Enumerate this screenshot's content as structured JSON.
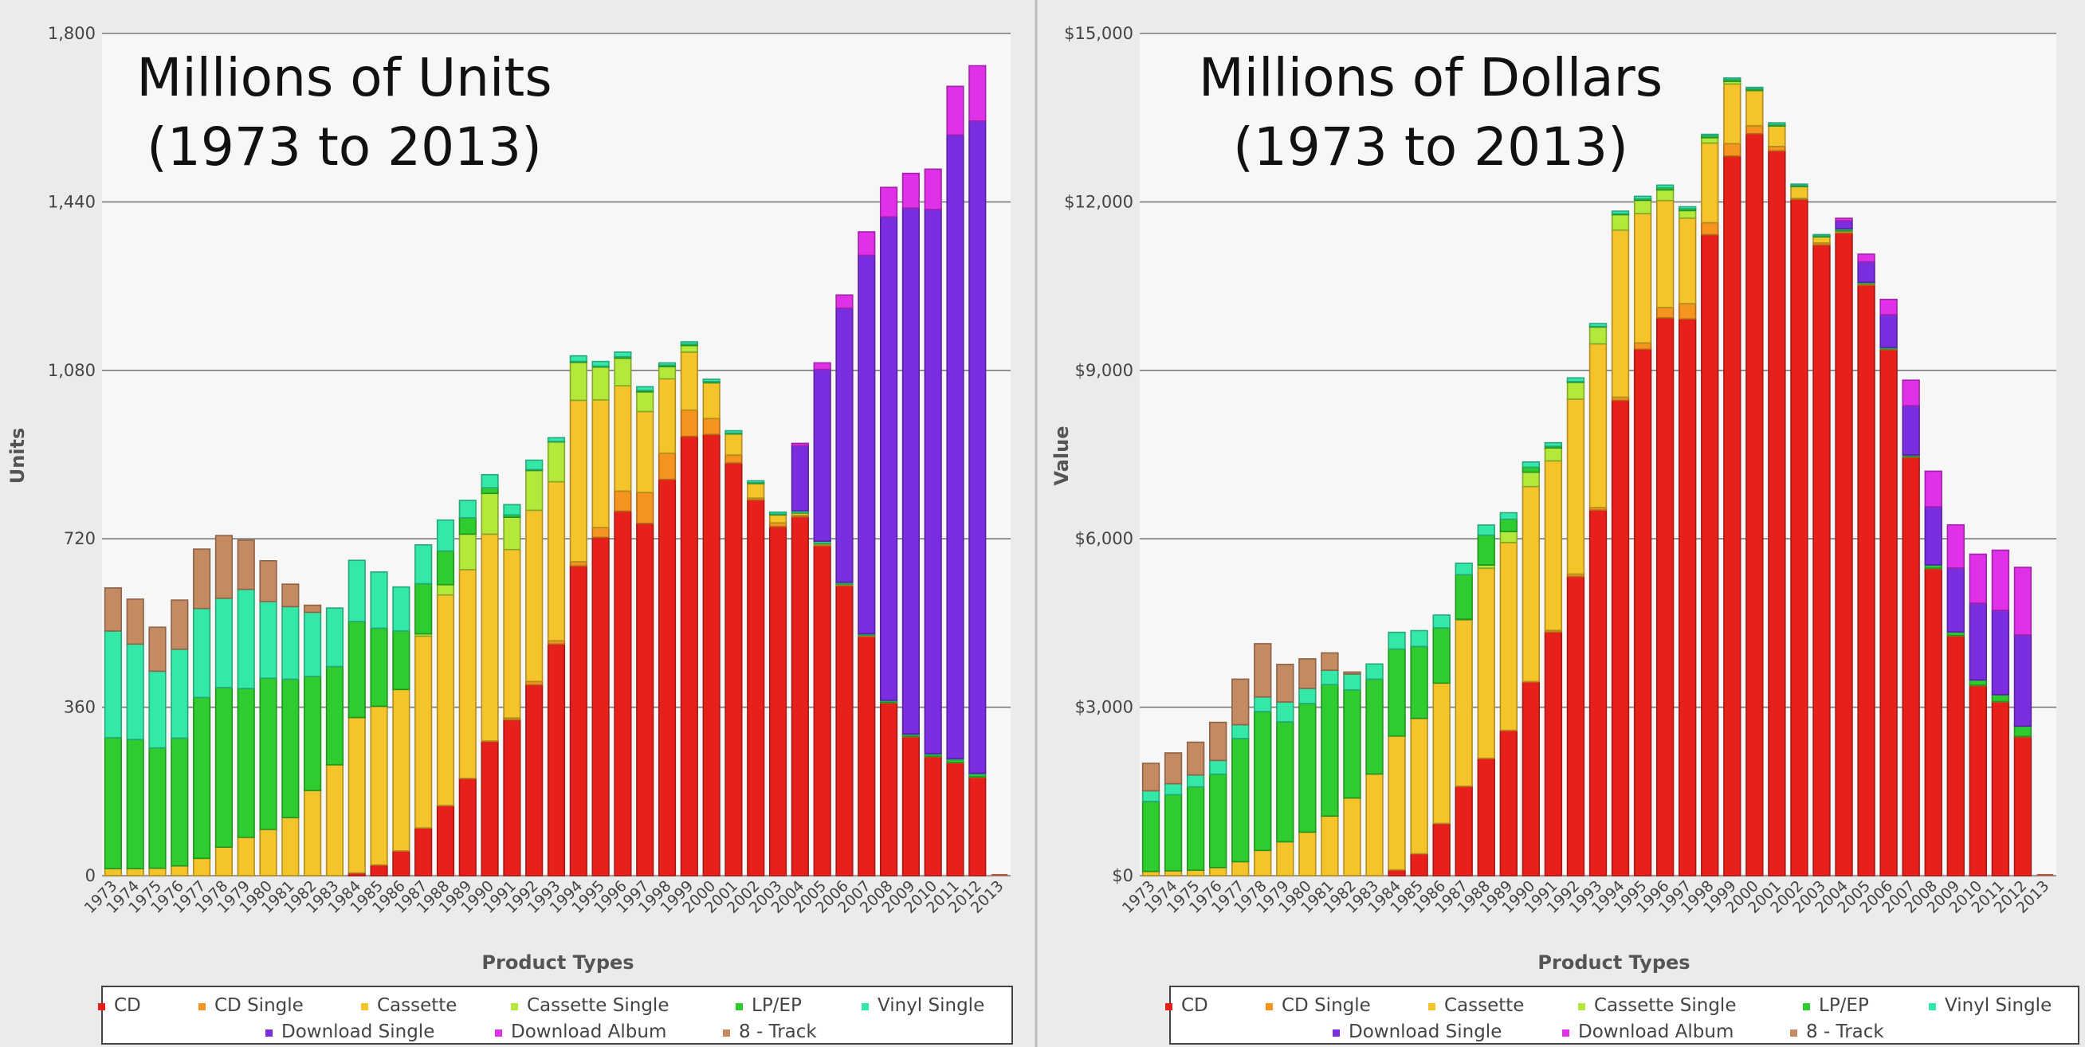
{
  "colors": {
    "CD": "#e8201c",
    "CD Single": "#f5941e",
    "Cassette": "#f4c42a",
    "Cassette Single": "#b4e83a",
    "LP/EP": "#2ecc2e",
    "Vinyl Single": "#34e8a8",
    "Download Single": "#7a2ee0",
    "Download Album": "#e030e8",
    "8 - Track": "#c48a62"
  },
  "chart_data": [
    {
      "type": "bar",
      "stacked": true,
      "title": "Millions of Units\n(1973 to 2013)",
      "xlabel": "Product Types",
      "ylabel": "Units",
      "ylim": [
        0,
        1800
      ],
      "yticks": [
        "0",
        "360",
        "720",
        "1,080",
        "1,440",
        "1,800"
      ],
      "yticks_values": [
        0,
        360,
        720,
        1080,
        1440,
        1800
      ],
      "grid": true,
      "legend": "bottom",
      "categories": [
        "1973",
        "1974",
        "1975",
        "1976",
        "1977",
        "1978",
        "1979",
        "1980",
        "1981",
        "1982",
        "1983",
        "1984",
        "1985",
        "1986",
        "1987",
        "1988",
        "1989",
        "1990",
        "1991",
        "1992",
        "1993",
        "1994",
        "1995",
        "1996",
        "1997",
        "1998",
        "1999",
        "2000",
        "2001",
        "2002",
        "2003",
        "2004",
        "2005",
        "2006",
        "2007",
        "2008",
        "2009",
        "2010",
        "2011",
        "2012",
        "2013"
      ],
      "series": [
        {
          "name": "CD",
          "values": [
            0,
            0,
            0,
            0,
            0,
            0,
            0,
            0,
            0,
            0,
            0,
            6,
            23,
            53,
            102,
            150,
            208,
            287,
            333,
            408,
            495,
            662,
            723,
            779,
            753,
            847,
            939,
            943,
            882,
            803,
            746,
            767,
            705,
            620,
            511,
            369,
            297,
            254,
            241,
            210,
            0
          ]
        },
        {
          "name": "CD Single",
          "values": [
            0,
            0,
            0,
            0,
            0,
            0,
            0,
            0,
            0,
            0,
            0,
            0,
            0,
            0,
            0,
            0,
            0,
            1,
            4,
            7,
            7,
            9,
            21,
            43,
            66,
            56,
            56,
            34,
            17,
            4,
            8,
            3,
            3,
            2,
            3,
            1,
            1,
            1,
            1,
            1,
            0
          ]
        },
        {
          "name": "Cassette",
          "values": [
            15,
            15,
            16,
            21,
            37,
            61,
            82,
            99,
            124,
            182,
            237,
            332,
            339,
            345,
            410,
            450,
            446,
            442,
            360,
            366,
            340,
            345,
            273,
            225,
            173,
            159,
            124,
            76,
            45,
            31,
            17,
            5,
            2,
            1,
            0,
            0,
            0,
            0,
            0,
            0,
            0
          ]
        },
        {
          "name": "Cassette Single",
          "values": [
            0,
            0,
            0,
            0,
            0,
            0,
            0,
            0,
            0,
            0,
            0,
            0,
            0,
            0,
            5,
            22,
            76,
            87,
            69,
            85,
            85,
            81,
            70,
            59,
            42,
            26,
            14,
            1,
            0,
            0,
            0,
            0,
            0,
            0,
            0,
            0,
            0,
            0,
            0,
            0,
            0
          ]
        },
        {
          "name": "LP/EP",
          "values": [
            280,
            276,
            257,
            273,
            344,
            341,
            318,
            323,
            296,
            244,
            210,
            205,
            167,
            125,
            107,
            72,
            35,
            12,
            5,
            2,
            1,
            2,
            2,
            3,
            3,
            3,
            3,
            2,
            2,
            2,
            2,
            1,
            1,
            1,
            1,
            3,
            3,
            4,
            6,
            6,
            0
          ]
        },
        {
          "name": "Vinyl Single",
          "values": [
            228,
            204,
            164,
            190,
            190,
            191,
            212,
            164,
            155,
            137,
            125,
            131,
            120,
            94,
            83,
            66,
            37,
            28,
            22,
            20,
            8,
            12,
            10,
            10,
            8,
            5,
            5,
            5,
            5,
            4,
            4,
            4,
            4,
            3,
            2,
            2,
            2,
            2,
            2,
            2,
            0
          ]
        },
        {
          "name": "Download Single",
          "values": [
            0,
            0,
            0,
            0,
            0,
            0,
            0,
            0,
            0,
            0,
            0,
            0,
            0,
            0,
            0,
            0,
            0,
            0,
            0,
            0,
            0,
            0,
            0,
            0,
            0,
            0,
            0,
            0,
            0,
            0,
            0,
            139,
            367,
            586,
            809,
            1033,
            1124,
            1163,
            1333,
            1394,
            0
          ]
        },
        {
          "name": "Download Album",
          "values": [
            0,
            0,
            0,
            0,
            0,
            0,
            0,
            0,
            0,
            0,
            0,
            0,
            0,
            0,
            0,
            0,
            0,
            0,
            0,
            0,
            0,
            0,
            0,
            0,
            0,
            0,
            0,
            0,
            0,
            0,
            0,
            5,
            14,
            28,
            50,
            63,
            74,
            86,
            104,
            118,
            0
          ]
        },
        {
          "name": "8 - Track",
          "values": [
            92,
            96,
            94,
            105,
            127,
            134,
            105,
            87,
            48,
            15,
            0,
            0,
            0,
            0,
            0,
            0,
            0,
            0,
            0,
            0,
            0,
            0,
            0,
            0,
            0,
            0,
            0,
            0,
            0,
            0,
            0,
            0,
            0,
            0,
            0,
            0,
            0,
            0,
            0,
            0,
            0
          ]
        }
      ]
    },
    {
      "type": "bar",
      "stacked": true,
      "title": "Millions of Dollars\n(1973 to 2013)",
      "xlabel": "Product Types",
      "ylabel": "Value",
      "ylim": [
        0,
        15000
      ],
      "yticks": [
        "$0",
        "$3,000",
        "$6,000",
        "$9,000",
        "$12,000",
        "$15,000"
      ],
      "yticks_values": [
        0,
        3000,
        6000,
        9000,
        12000,
        15000
      ],
      "grid": true,
      "legend": "bottom",
      "categories": [
        "1973",
        "1974",
        "1975",
        "1976",
        "1977",
        "1978",
        "1979",
        "1980",
        "1981",
        "1982",
        "1983",
        "1984",
        "1985",
        "1986",
        "1987",
        "1988",
        "1989",
        "1990",
        "1991",
        "1992",
        "1993",
        "1994",
        "1995",
        "1996",
        "1997",
        "1998",
        "1999",
        "2000",
        "2001",
        "2002",
        "2003",
        "2004",
        "2005",
        "2006",
        "2007",
        "2008",
        "2009",
        "2010",
        "2011",
        "2012",
        "2013"
      ],
      "series": [
        {
          "name": "CD",
          "values": [
            0,
            0,
            0,
            0,
            0,
            0,
            0,
            0,
            0,
            0,
            0,
            103,
            390,
            930,
            1594,
            2090,
            2588,
            3452,
            4338,
            5327,
            6511,
            8465,
            9377,
            9935,
            9915,
            11416,
            12816,
            13215,
            12909,
            12044,
            11233,
            11447,
            10520,
            9373,
            7452,
            5471,
            4274,
            3390,
            3100,
            2480,
            0
          ]
        },
        {
          "name": "CD Single",
          "values": [
            0,
            0,
            0,
            0,
            0,
            0,
            0,
            0,
            0,
            0,
            0,
            0,
            0,
            0,
            0,
            0,
            0,
            6,
            31,
            45,
            45,
            56,
            111,
            184,
            273,
            213,
            222,
            142,
            79,
            19,
            36,
            15,
            10,
            7,
            12,
            4,
            3,
            2,
            2,
            2,
            0
          ]
        },
        {
          "name": "Cassette",
          "values": [
            76,
            87,
            98,
            145,
            249,
            450,
            604,
            776,
            1062,
            1384,
            1811,
            2384,
            2412,
            2500,
            2960,
            3385,
            3346,
            3472,
            3019,
            3116,
            2916,
            2977,
            2304,
            1905,
            1523,
            1420,
            1062,
            626,
            363,
            209,
            108,
            24,
            13,
            1,
            0,
            0,
            0,
            0,
            0,
            0,
            0
          ]
        },
        {
          "name": "Cassette Single",
          "values": [
            0,
            0,
            0,
            0,
            0,
            0,
            0,
            0,
            0,
            0,
            0,
            0,
            0,
            0,
            14,
            58,
            194,
            257,
            230,
            298,
            299,
            274,
            236,
            190,
            134,
            95,
            48,
            4,
            0,
            0,
            0,
            0,
            0,
            0,
            0,
            0,
            0,
            0,
            0,
            0,
            0
          ]
        },
        {
          "name": "LP/EP",
          "values": [
            1246,
            1356,
            1485,
            1663,
            2195,
            2473,
            2136,
            2291,
            2341,
            1925,
            1690,
            1549,
            1281,
            983,
            793,
            532,
            220,
            87,
            29,
            14,
            11,
            17,
            25,
            37,
            33,
            34,
            32,
            28,
            27,
            21,
            20,
            19,
            14,
            16,
            23,
            57,
            60,
            89,
            117,
            177,
            0
          ]
        },
        {
          "name": "Vinyl Single",
          "values": [
            190,
            194,
            211,
            245,
            245,
            260,
            354,
            269,
            256,
            283,
            269,
            298,
            281,
            228,
            203,
            180,
            116,
            94,
            64,
            66,
            51,
            47,
            47,
            48,
            36,
            26,
            27,
            26,
            31,
            24,
            21,
            20,
            13,
            12,
            5,
            4,
            5,
            6,
            6,
            6,
            0
          ]
        },
        {
          "name": "Download Single",
          "values": [
            0,
            0,
            0,
            0,
            0,
            0,
            0,
            0,
            0,
            0,
            0,
            0,
            0,
            0,
            0,
            0,
            0,
            0,
            0,
            0,
            0,
            0,
            0,
            0,
            0,
            0,
            0,
            0,
            0,
            0,
            0,
            138,
            363,
            580,
            878,
            1033,
            1138,
            1367,
            1502,
            1623,
            0
          ]
        },
        {
          "name": "Download Album",
          "values": [
            0,
            0,
            0,
            0,
            0,
            0,
            0,
            0,
            0,
            0,
            0,
            0,
            0,
            0,
            0,
            0,
            0,
            0,
            0,
            0,
            0,
            0,
            0,
            0,
            0,
            0,
            0,
            0,
            0,
            0,
            0,
            46,
            136,
            275,
            455,
            635,
            768,
            872,
            1070,
            1203,
            0
          ]
        },
        {
          "name": "8 - Track",
          "values": [
            489,
            549,
            583,
            678,
            811,
            948,
            669,
            526,
            309,
            35,
            0,
            0,
            0,
            0,
            0,
            0,
            0,
            0,
            0,
            0,
            0,
            0,
            0,
            0,
            0,
            0,
            0,
            0,
            0,
            0,
            0,
            0,
            0,
            0,
            0,
            0,
            0,
            0,
            0,
            0,
            0
          ]
        }
      ]
    }
  ],
  "legend_items": [
    "CD",
    "CD Single",
    "Cassette",
    "Cassette Single",
    "LP/EP",
    "Vinyl Single",
    "Download Single",
    "Download Album",
    "8 - Track"
  ]
}
